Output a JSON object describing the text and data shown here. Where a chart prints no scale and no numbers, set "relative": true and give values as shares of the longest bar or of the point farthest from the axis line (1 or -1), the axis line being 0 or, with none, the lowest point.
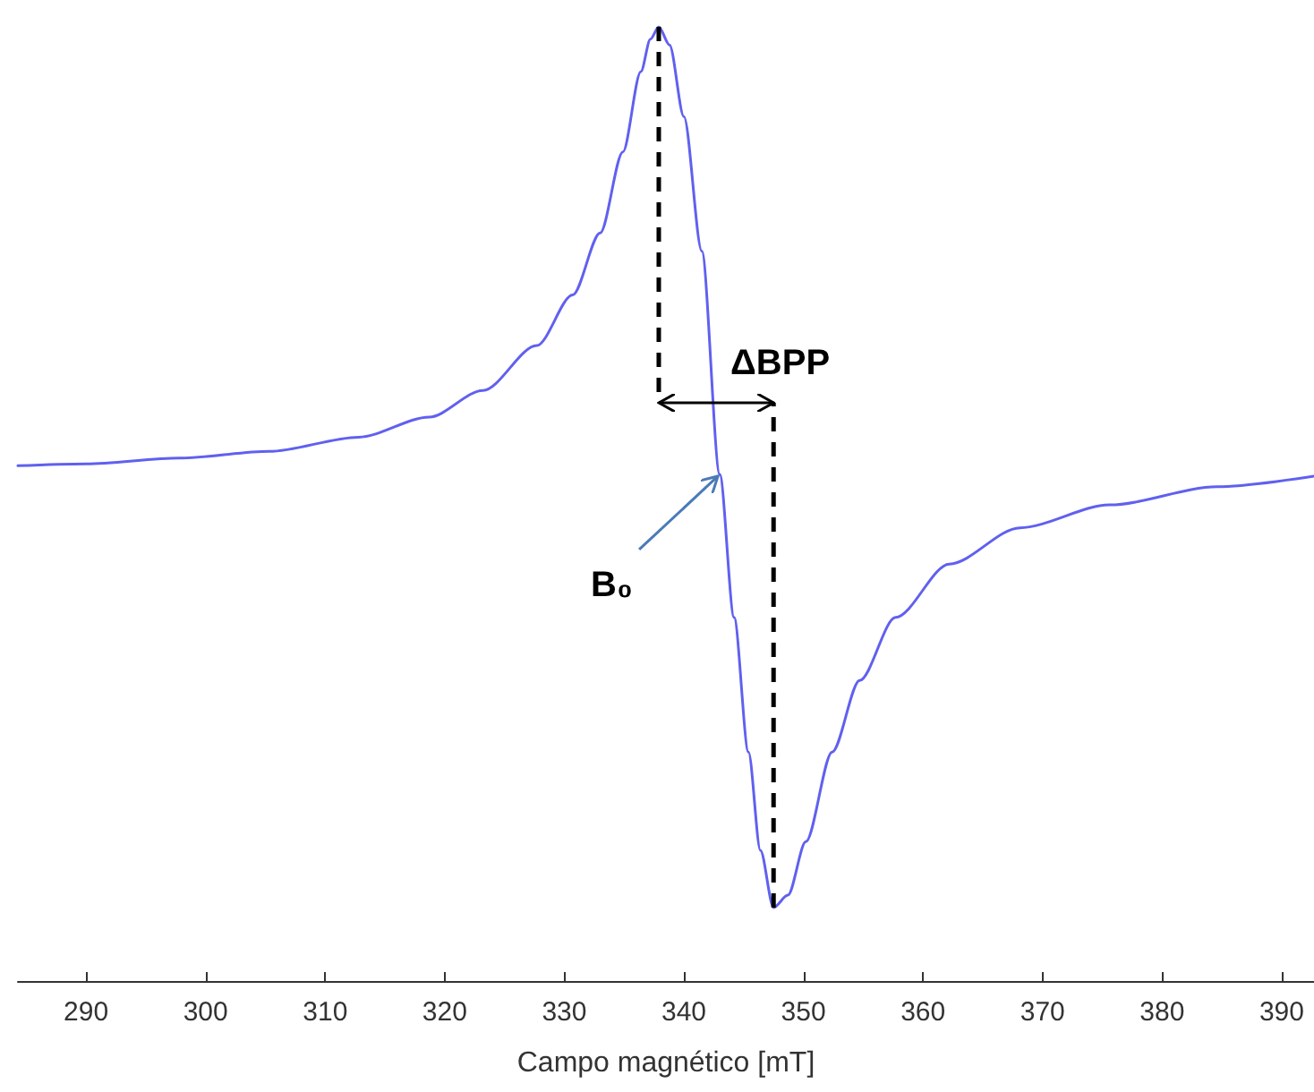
{
  "chart_data": {
    "type": "line",
    "xlabel": "Campo magnético [mT]",
    "relative": true,
    "marker": "none",
    "line_style": "solid",
    "xlim": [
      284.3,
      392.7
    ],
    "xticks": [
      290,
      300,
      310,
      320,
      330,
      340,
      350,
      360,
      370,
      380,
      390
    ],
    "x": [
      284.3,
      290,
      297.8,
      305.3,
      312.8,
      318.7,
      323.2,
      327.7,
      330.7,
      333.0,
      334.9,
      336.4,
      337.2,
      337.9,
      338.8,
      340.0,
      341.5,
      343.0,
      344.2,
      345.4,
      346.4,
      347.5,
      348.7,
      350.2,
      352.4,
      354.7,
      357.7,
      362.2,
      368.1,
      375.6,
      384.6,
      392.7
    ],
    "series": [
      {
        "color": "#6060f0",
        "values": [
          0.54,
          0.542,
          0.548,
          0.555,
          0.57,
          0.591,
          0.619,
          0.666,
          0.719,
          0.784,
          0.869,
          0.953,
          0.987,
          1,
          0.981,
          0.906,
          0.765,
          0.531,
          0.381,
          0.24,
          0.137,
          0.077,
          0.09,
          0.146,
          0.24,
          0.315,
          0.381,
          0.437,
          0.475,
          0.499,
          0.518,
          0.529
        ]
      }
    ],
    "annotations": [
      {
        "text": "ΔBPP",
        "x": 342.7,
        "y": 0.606
      },
      {
        "text": "B₀",
        "x": 343.0,
        "y": 0.531
      }
    ]
  }
}
